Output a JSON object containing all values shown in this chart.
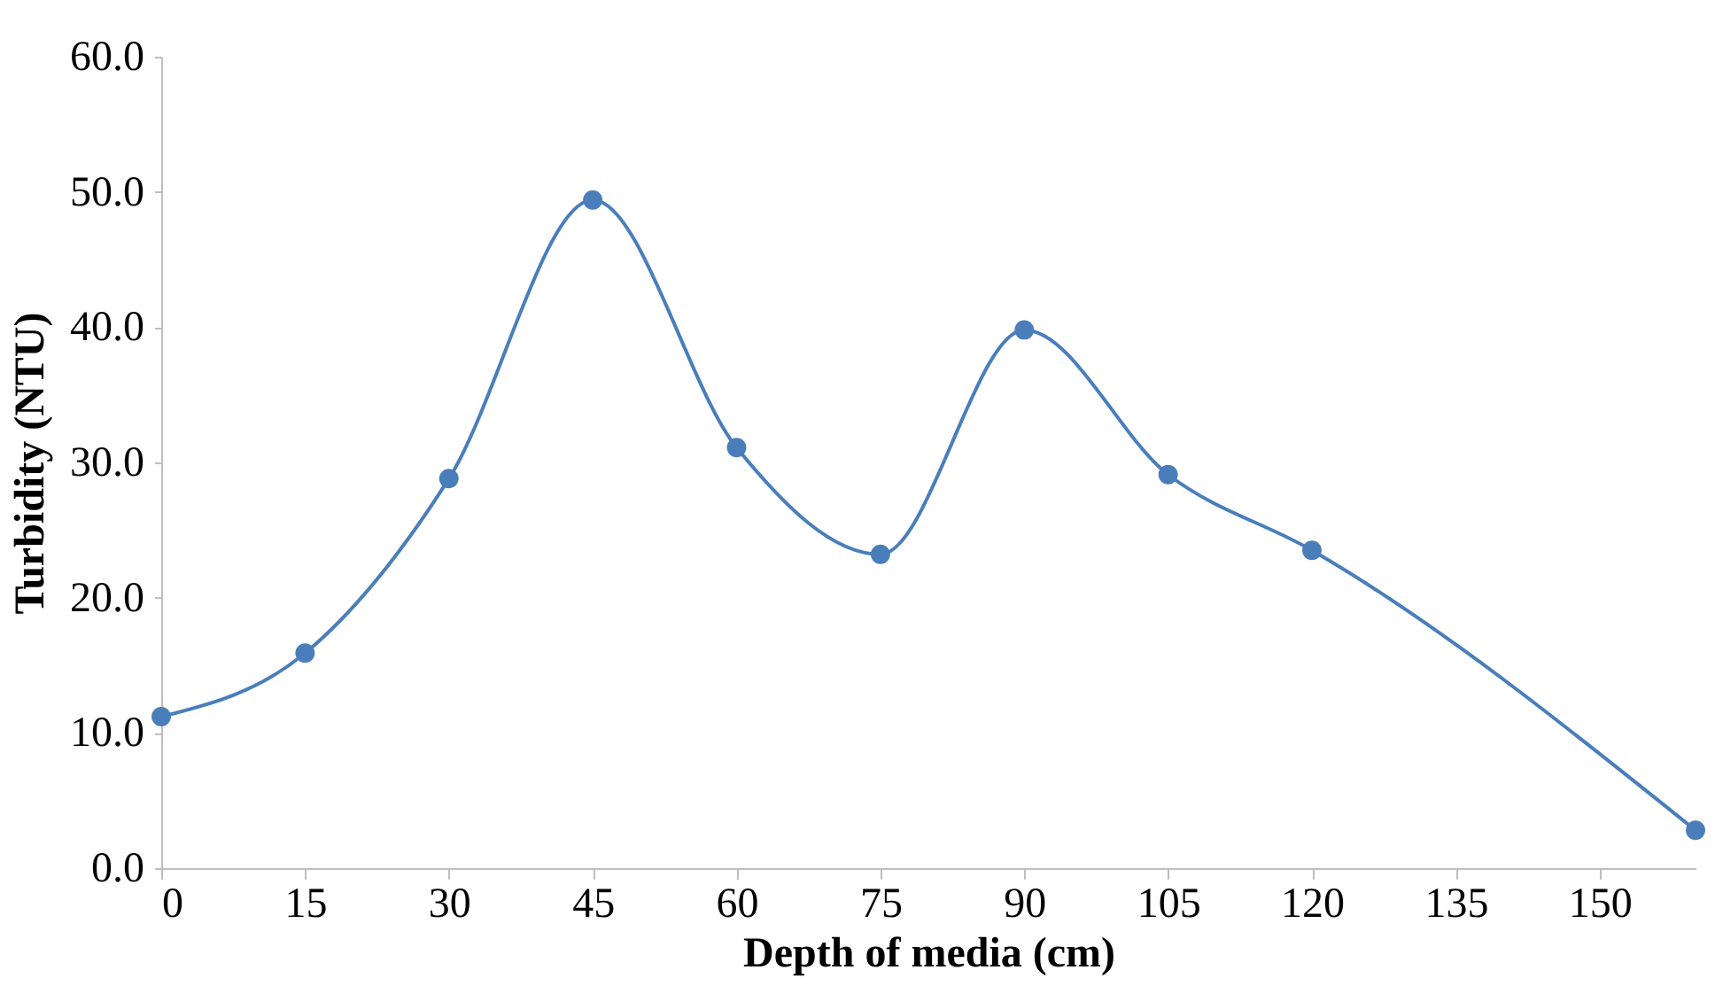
{
  "chart_data": {
    "type": "line",
    "xlabel": "Depth of media (cm)",
    "ylabel": "Turbidity (NTU)",
    "x": [
      0,
      15,
      30,
      45,
      60,
      75,
      90,
      105,
      120,
      160
    ],
    "series": [
      {
        "color": "#4a7ebb",
        "values": [
          11.2,
          15.9,
          28.8,
          49.4,
          31.1,
          23.2,
          39.8,
          29.1,
          23.5,
          2.8
        ]
      }
    ],
    "xlim": [
      0,
      160
    ],
    "xticks": [
      0,
      15,
      30,
      45,
      60,
      75,
      90,
      105,
      120,
      135,
      150
    ],
    "ylim": [
      0,
      60
    ],
    "yticks": [
      {
        "value": 0,
        "label": "0.0"
      },
      {
        "value": 10,
        "label": "10.0"
      },
      {
        "value": 20,
        "label": "20.0"
      },
      {
        "value": 30,
        "label": "30.0"
      },
      {
        "value": 40,
        "label": "40.0"
      },
      {
        "value": 50,
        "label": "50.0"
      },
      {
        "value": 60,
        "label": "60.0"
      }
    ],
    "grid": false,
    "marker": "circle",
    "line_style": "solid"
  }
}
